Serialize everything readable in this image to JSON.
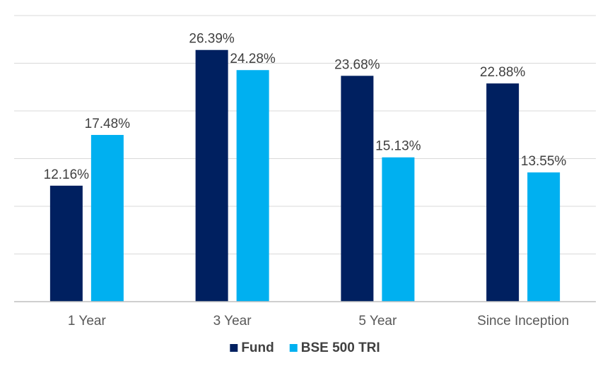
{
  "chart_data": {
    "type": "bar",
    "categories": [
      "1 Year",
      "3 Year",
      "5 Year",
      "Since Inception"
    ],
    "series": [
      {
        "name": "Fund",
        "color": "#002060",
        "values": [
          12.16,
          26.39,
          23.68,
          22.88
        ],
        "labels": [
          "12.16%",
          "26.39%",
          "23.68%",
          "22.88%"
        ]
      },
      {
        "name": "BSE 500 TRI",
        "color": "#00b0f0",
        "values": [
          17.48,
          24.28,
          15.13,
          13.55
        ],
        "labels": [
          "17.48%",
          "24.28%",
          "15.13%",
          "13.55%"
        ]
      }
    ],
    "ylim": [
      0,
      30
    ],
    "yticks": [
      0,
      5,
      10,
      15,
      20,
      25,
      30
    ],
    "grid": true,
    "legend": "bottom"
  }
}
